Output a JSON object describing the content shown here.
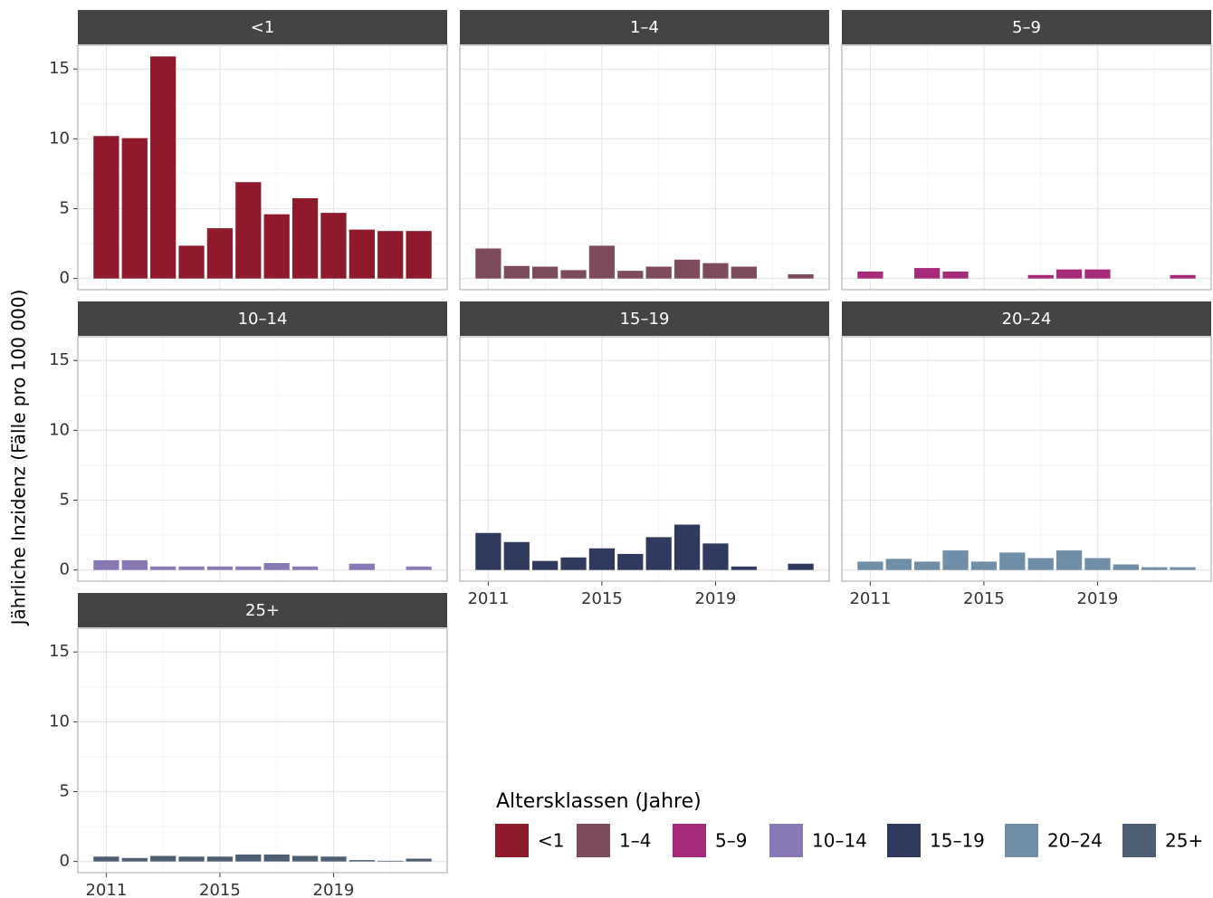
{
  "chart_data": [
    {
      "type": "bar",
      "title": "<1",
      "color": "#8f1a2b",
      "x": [
        2011,
        2012,
        2013,
        2014,
        2015,
        2016,
        2017,
        2018,
        2019,
        2020,
        2021,
        2022
      ],
      "values": [
        10.2,
        10.05,
        15.9,
        2.35,
        3.6,
        6.9,
        4.6,
        5.75,
        4.7,
        3.5,
        3.4,
        3.4
      ],
      "xlim": [
        2010,
        2023
      ],
      "xticks": [
        2011,
        2015,
        2019
      ],
      "xminor": [
        2013,
        2017,
        2021
      ],
      "ylim": [
        -0.8,
        16.7
      ],
      "yticks": [
        0,
        5,
        10,
        15
      ],
      "yminor": [
        2.5,
        7.5,
        12.5
      ],
      "grid": true
    },
    {
      "type": "bar",
      "title": "1–4",
      "color": "#7e4a5e",
      "x": [
        2011,
        2012,
        2013,
        2014,
        2015,
        2016,
        2017,
        2018,
        2019,
        2020,
        2021,
        2022
      ],
      "values": [
        2.15,
        0.9,
        0.85,
        0.6,
        2.35,
        0.55,
        0.85,
        1.35,
        1.1,
        0.85,
        0,
        0.3
      ],
      "xlim": [
        2010,
        2023
      ],
      "xticks": [
        2011,
        2015,
        2019
      ],
      "xminor": [
        2013,
        2017,
        2021
      ],
      "ylim": [
        -0.8,
        16.7
      ],
      "yticks": [
        0,
        5,
        10,
        15
      ],
      "yminor": [
        2.5,
        7.5,
        12.5
      ],
      "grid": true
    },
    {
      "type": "bar",
      "title": "5–9",
      "color": "#a52a7a",
      "x": [
        2011,
        2012,
        2013,
        2014,
        2015,
        2016,
        2017,
        2018,
        2019,
        2020,
        2021,
        2022
      ],
      "values": [
        0.5,
        0,
        0.75,
        0.5,
        0,
        0,
        0.25,
        0.65,
        0.65,
        0,
        0,
        0.25
      ],
      "xlim": [
        2010,
        2023
      ],
      "xticks": [
        2011,
        2015,
        2019
      ],
      "xminor": [
        2013,
        2017,
        2021
      ],
      "ylim": [
        -0.8,
        16.7
      ],
      "yticks": [
        0,
        5,
        10,
        15
      ],
      "yminor": [
        2.5,
        7.5,
        12.5
      ],
      "grid": true
    },
    {
      "type": "bar",
      "title": "10–14",
      "color": "#8878b5",
      "x": [
        2011,
        2012,
        2013,
        2014,
        2015,
        2016,
        2017,
        2018,
        2019,
        2020,
        2021,
        2022
      ],
      "values": [
        0.7,
        0.7,
        0.25,
        0.25,
        0.25,
        0.25,
        0.5,
        0.25,
        0,
        0.45,
        0,
        0.25
      ],
      "xlim": [
        2010,
        2023
      ],
      "xticks": [
        2011,
        2015,
        2019
      ],
      "xminor": [
        2013,
        2017,
        2021
      ],
      "ylim": [
        -0.8,
        16.7
      ],
      "yticks": [
        0,
        5,
        10,
        15
      ],
      "yminor": [
        2.5,
        7.5,
        12.5
      ],
      "grid": true
    },
    {
      "type": "bar",
      "title": "15–19",
      "color": "#2f3a5e",
      "x": [
        2011,
        2012,
        2013,
        2014,
        2015,
        2016,
        2017,
        2018,
        2019,
        2020,
        2021,
        2022
      ],
      "values": [
        2.65,
        2.0,
        0.65,
        0.9,
        1.55,
        1.15,
        2.35,
        3.25,
        1.9,
        0.25,
        0,
        0.45
      ],
      "xlim": [
        2010,
        2023
      ],
      "xticks": [
        2011,
        2015,
        2019
      ],
      "xminor": [
        2013,
        2017,
        2021
      ],
      "ylim": [
        -0.8,
        16.7
      ],
      "yticks": [
        0,
        5,
        10,
        15
      ],
      "yminor": [
        2.5,
        7.5,
        12.5
      ],
      "grid": true
    },
    {
      "type": "bar",
      "title": "20–24",
      "color": "#6f8ea8",
      "x": [
        2011,
        2012,
        2013,
        2014,
        2015,
        2016,
        2017,
        2018,
        2019,
        2020,
        2021,
        2022
      ],
      "values": [
        0.6,
        0.8,
        0.6,
        1.4,
        0.6,
        1.25,
        0.85,
        1.4,
        0.85,
        0.4,
        0.2,
        0.2
      ],
      "xlim": [
        2010,
        2023
      ],
      "xticks": [
        2011,
        2015,
        2019
      ],
      "xminor": [
        2013,
        2017,
        2021
      ],
      "ylim": [
        -0.8,
        16.7
      ],
      "yticks": [
        0,
        5,
        10,
        15
      ],
      "yminor": [
        2.5,
        7.5,
        12.5
      ],
      "grid": true
    },
    {
      "type": "bar",
      "title": "25+",
      "color": "#4f5f73",
      "x": [
        2011,
        2012,
        2013,
        2014,
        2015,
        2016,
        2017,
        2018,
        2019,
        2020,
        2021,
        2022
      ],
      "values": [
        0.35,
        0.25,
        0.4,
        0.35,
        0.35,
        0.5,
        0.5,
        0.4,
        0.35,
        0.1,
        0.05,
        0.2
      ],
      "xlim": [
        2010,
        2023
      ],
      "xticks": [
        2011,
        2015,
        2019
      ],
      "xminor": [
        2013,
        2017,
        2021
      ],
      "ylim": [
        -0.8,
        16.7
      ],
      "yticks": [
        0,
        5,
        10,
        15
      ],
      "yminor": [
        2.5,
        7.5,
        12.5
      ],
      "grid": true
    }
  ],
  "y_label": "Jährliche Inzidenz (Fälle pro 100 000)",
  "legend_title": "Altersklassen (Jahre)"
}
